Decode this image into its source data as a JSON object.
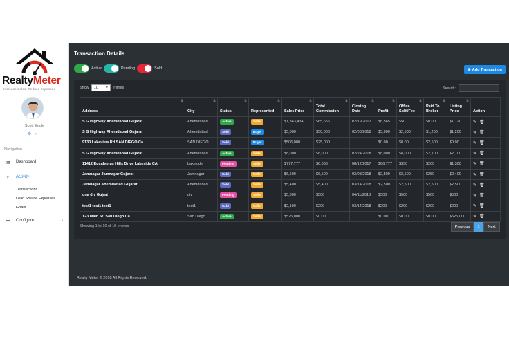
{
  "brand": {
    "name_a": "Realty",
    "name_b": "Meter",
    "tagline": "Increase Sales. Reduce Expenses"
  },
  "user": {
    "name": "Scott Engle"
  },
  "nav": {
    "heading": "Navigation",
    "items": [
      {
        "label": "Dashboard",
        "icon": "grid-icon"
      },
      {
        "label": "Activity",
        "icon": "activity-icon",
        "active": true
      },
      {
        "label": "Configure",
        "icon": "monitor-icon"
      }
    ],
    "sub_items": [
      "Transactions",
      "Lead Source Expenses",
      "Goals"
    ]
  },
  "page": {
    "title": "Transaction Details",
    "toggles": [
      {
        "label": "Active",
        "color": "#2ea84a"
      },
      {
        "label": "Pending",
        "color": "#26b5a8"
      },
      {
        "label": "Sold",
        "color": "#e8263a"
      }
    ],
    "add_button": "Add Transaction",
    "show_prefix": "Show",
    "show_value": "10",
    "show_suffix": "entries",
    "search_label": "Search:",
    "info": "Showing 1 to 10 of 10 entries",
    "pager": {
      "prev": "Previous",
      "page": "1",
      "next": "Next"
    },
    "footer": "Realty Meter © 2018 All Rights Reserved."
  },
  "table": {
    "headers": [
      "Address",
      "City",
      "Status",
      "Represented",
      "Sales Price",
      "Total Commission",
      "Closing Date",
      "Profit",
      "Office Split/Fee",
      "Paid To Broker",
      "Listing Price",
      "Action"
    ],
    "status_colors": {
      "Active": "#2ea84a",
      "Sold": "#5b6abf",
      "Pending": "#e64ea0"
    },
    "rep_colors": {
      "Seller": "#f0a830",
      "Buyer": "#1e88e5"
    },
    "rows": [
      {
        "address": "S G Highway Ahemdabad Gujarat",
        "city": "Ahemdabad",
        "status": "Active",
        "represented": "Seller",
        "price": "$1,343,434",
        "commission": "$65,656",
        "closing": "02/19/2017",
        "profit": "$6,565",
        "split": "$50",
        "broker": "$0.00",
        "listing": "$1,120"
      },
      {
        "address": "S G Highway Ahemdabad Gujarat",
        "city": "Ahemdabad",
        "status": "Sold",
        "represented": "Buyer",
        "price": "$5,000",
        "commission": "$50,000",
        "closing": "02/08/2018",
        "profit": "$5,000",
        "split": "$2,500",
        "broker": "$1,200",
        "listing": "$1,200"
      },
      {
        "address": "9130 Lakeview Rd SAN DIEGO Ca",
        "city": "SAN DIEGO",
        "status": "Sold",
        "represented": "Buyer",
        "price": "$506,000",
        "commission": "$25,000",
        "closing": "",
        "profit": "$0.00",
        "split": "$0.00",
        "broker": "$2,500",
        "listing": "$0.00"
      },
      {
        "address": "S G Highway Ahemdabad Gujarat",
        "city": "Ahemdabad",
        "status": "Active",
        "represented": "Seller",
        "price": "$8,000",
        "commission": "$8,000",
        "closing": "02/24/2018",
        "profit": "$8,000",
        "split": "$8,000",
        "broker": "$2,100",
        "listing": "$2,100"
      },
      {
        "address": "11412 Eucalyptus Hills Drive Lakeside CA",
        "city": "Lakeside",
        "status": "Pending",
        "represented": "Seller",
        "price": "$777,777",
        "commission": "$6,666",
        "closing": "08/12/2017",
        "profit": "$66,777",
        "split": "$350",
        "broker": "$200",
        "listing": "$1,300"
      },
      {
        "address": "Jamnagar Jamnagar Gujarat",
        "city": "Jamnagar",
        "status": "Sold",
        "represented": "Seller",
        "price": "$6,500",
        "commission": "$6,500",
        "closing": "03/08/2018",
        "profit": "$2,500",
        "split": "$2,500",
        "broker": "$250",
        "listing": "$2,400"
      },
      {
        "address": "Jamnagar Ahemdabad Gujarat",
        "city": "Ahemdabad",
        "status": "Sold",
        "represented": "Seller",
        "price": "$5,400",
        "commission": "$5,400",
        "closing": "03/14/2018",
        "profit": "$2,500",
        "split": "$2,500",
        "broker": "$2,500",
        "listing": "$2,500"
      },
      {
        "address": "una div Gujrat",
        "city": "div",
        "status": "Pending",
        "represented": "Seller",
        "price": "$5,000",
        "commission": "$500",
        "closing": "04/11/2018",
        "profit": "$500",
        "split": "$500",
        "broker": "$500",
        "listing": "$500"
      },
      {
        "address": "test1 test1 test1",
        "city": "test1",
        "status": "Sold",
        "represented": "Seller",
        "price": "$2,100",
        "commission": "$200",
        "closing": "03/14/2018",
        "profit": "$200",
        "split": "$200",
        "broker": "$200",
        "listing": "$200"
      },
      {
        "address": "123 Main St. San Diego Ca",
        "city": "San Diego",
        "status": "Active",
        "represented": "Seller",
        "price": "$525,000",
        "commission": "$0.00",
        "closing": "",
        "profit": "$0.00",
        "split": "$0.00",
        "broker": "$0.00",
        "listing": "$525,000"
      }
    ]
  }
}
